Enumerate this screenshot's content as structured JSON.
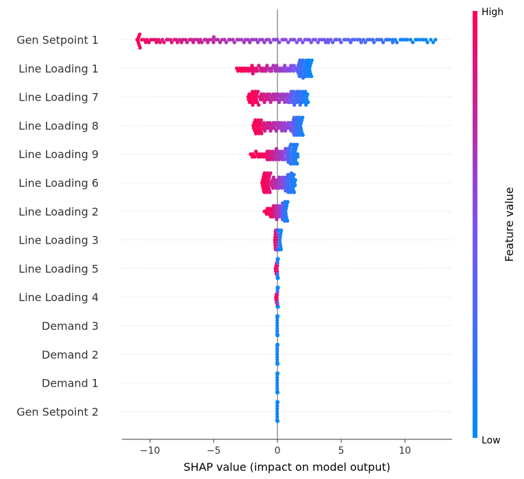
{
  "chart_data": {
    "type": "scatter",
    "subtype": "shap-beeswarm-summary",
    "xlabel": "SHAP value (impact on model output)",
    "xlim": [
      -12.2,
      13.7
    ],
    "xticks": [
      -10,
      -5,
      0,
      5,
      10
    ],
    "xtick_labels": [
      "−10",
      "−5",
      "0",
      "5",
      "10"
    ],
    "colorbar": {
      "label": "Feature value",
      "high_label": "High",
      "low_label": "Low",
      "low_color": "#008bfb",
      "high_color": "#ff0052"
    },
    "grid": false,
    "features": [
      {
        "name": "Gen Setpoint 1",
        "segments": [
          {
            "from": -11.0,
            "to": -10.8,
            "n": 6,
            "c0": 1.0,
            "c1": 0.97
          },
          {
            "from": -10.8,
            "to": -5.0,
            "n": 40,
            "c0": 0.95,
            "c1": 0.75
          },
          {
            "from": -5.0,
            "to": 4.0,
            "n": 55,
            "c0": 0.72,
            "c1": 0.45
          },
          {
            "from": 4.0,
            "to": 9.0,
            "n": 30,
            "c0": 0.42,
            "c1": 0.2
          },
          {
            "from": 9.0,
            "to": 12.4,
            "n": 18,
            "c0": 0.12,
            "c1": 0.0
          }
        ]
      },
      {
        "name": "Line Loading 1",
        "segments": [
          {
            "from": -3.2,
            "to": -2.0,
            "n": 12,
            "c0": 1.0,
            "c1": 0.95
          },
          {
            "from": -2.0,
            "to": 1.6,
            "n": 40,
            "c0": 0.92,
            "c1": 0.45
          },
          {
            "from": 1.6,
            "to": 2.7,
            "n": 35,
            "c0": 0.3,
            "c1": 0.0
          }
        ]
      },
      {
        "name": "Line Loading 7",
        "segments": [
          {
            "from": -2.3,
            "to": -1.6,
            "n": 18,
            "c0": 1.0,
            "c1": 0.95
          },
          {
            "from": -1.6,
            "to": 1.0,
            "n": 40,
            "c0": 0.92,
            "c1": 0.55
          },
          {
            "from": 1.0,
            "to": 2.4,
            "n": 35,
            "c0": 0.4,
            "c1": 0.05
          }
        ]
      },
      {
        "name": "Line Loading 8",
        "segments": [
          {
            "from": -1.9,
            "to": -1.3,
            "n": 16,
            "c0": 1.0,
            "c1": 0.95
          },
          {
            "from": -1.3,
            "to": 1.2,
            "n": 40,
            "c0": 0.9,
            "c1": 0.5
          },
          {
            "from": 1.2,
            "to": 2.0,
            "n": 30,
            "c0": 0.35,
            "c1": 0.05
          }
        ]
      },
      {
        "name": "Line Loading 9",
        "segments": [
          {
            "from": -2.1,
            "to": -0.8,
            "n": 14,
            "c0": 1.0,
            "c1": 0.95
          },
          {
            "from": -0.8,
            "to": 0.8,
            "n": 30,
            "c0": 0.9,
            "c1": 0.5
          },
          {
            "from": 0.8,
            "to": 1.6,
            "n": 35,
            "c0": 0.3,
            "c1": 0.05
          }
        ]
      },
      {
        "name": "Line Loading 6",
        "segments": [
          {
            "from": -1.2,
            "to": -0.6,
            "n": 25,
            "c0": 1.0,
            "c1": 0.9
          },
          {
            "from": -0.6,
            "to": 0.6,
            "n": 25,
            "c0": 0.85,
            "c1": 0.5
          },
          {
            "from": 0.6,
            "to": 1.4,
            "n": 30,
            "c0": 0.35,
            "c1": 0.05
          }
        ]
      },
      {
        "name": "Line Loading 2",
        "segments": [
          {
            "from": -1.0,
            "to": -0.4,
            "n": 10,
            "c0": 1.0,
            "c1": 0.95
          },
          {
            "from": -0.4,
            "to": 0.4,
            "n": 20,
            "c0": 0.9,
            "c1": 0.5
          },
          {
            "from": 0.4,
            "to": 0.8,
            "n": 20,
            "c0": 0.3,
            "c1": 0.05
          }
        ]
      },
      {
        "name": "Line Loading 3",
        "segments": [
          {
            "from": -0.2,
            "to": -0.05,
            "n": 18,
            "c0": 1.0,
            "c1": 0.85
          },
          {
            "from": -0.05,
            "to": 0.05,
            "n": 10,
            "c0": 0.7,
            "c1": 0.4
          },
          {
            "from": 0.05,
            "to": 0.3,
            "n": 18,
            "c0": 0.25,
            "c1": 0.0
          }
        ]
      },
      {
        "name": "Line Loading 5",
        "segments": [
          {
            "from": -0.15,
            "to": 0.0,
            "n": 8,
            "c0": 1.0,
            "c1": 0.85
          },
          {
            "from": 0.0,
            "to": 0.05,
            "n": 24,
            "c0": 0.3,
            "c1": 0.0
          }
        ]
      },
      {
        "name": "Line Loading 4",
        "segments": [
          {
            "from": -0.12,
            "to": 0.0,
            "n": 8,
            "c0": 1.0,
            "c1": 0.85
          },
          {
            "from": 0.0,
            "to": 0.05,
            "n": 24,
            "c0": 0.3,
            "c1": 0.0
          }
        ]
      },
      {
        "name": "Demand 3",
        "segments": [
          {
            "from": -0.02,
            "to": 0.02,
            "n": 36,
            "c0": 0.1,
            "c1": 0.0
          }
        ]
      },
      {
        "name": "Demand 2",
        "segments": [
          {
            "from": -0.02,
            "to": 0.02,
            "n": 36,
            "c0": 0.1,
            "c1": 0.0
          }
        ]
      },
      {
        "name": "Demand 1",
        "segments": [
          {
            "from": -0.02,
            "to": 0.02,
            "n": 36,
            "c0": 0.1,
            "c1": 0.0
          }
        ]
      },
      {
        "name": "Gen Setpoint 2",
        "segments": [
          {
            "from": -0.02,
            "to": 0.02,
            "n": 36,
            "c0": 0.1,
            "c1": 0.0
          }
        ]
      }
    ]
  }
}
